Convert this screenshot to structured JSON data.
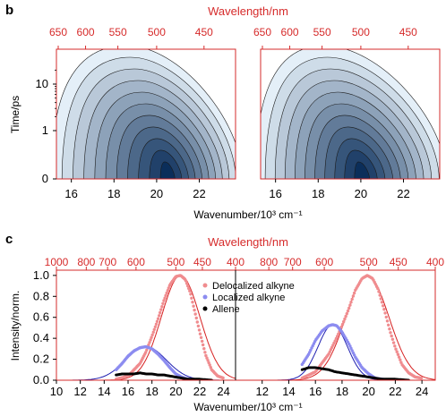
{
  "figure": {
    "panel_b_label": "b",
    "panel_c_label": "c"
  },
  "colors": {
    "top_axis": "#d62b2b",
    "contour_dark": "#0b2e5a",
    "contour_light": "#e4eff8",
    "delocalized": "#e8323a",
    "localized": "#3b3bd8",
    "allene": "#000000",
    "fit_line_deloc": "#d62020",
    "fit_line_loc": "#1f1fb0"
  },
  "chart_data": [
    {
      "type": "heatmap",
      "panel": "b-left",
      "xlabel": "Wavenumber/10³ cm⁻¹",
      "ylabel": "Time/ps",
      "top_axis_label": "Wavelength/nm",
      "x_ticks": [
        "16",
        "18",
        "20",
        "22"
      ],
      "x_tick_values": [
        16,
        18,
        20,
        22
      ],
      "top_ticks": [
        "650",
        "600",
        "550",
        "500",
        "450"
      ],
      "top_tick_values": [
        650,
        600,
        550,
        500,
        450
      ],
      "y_ticks": [
        "0",
        "1",
        "10"
      ],
      "xlim": [
        15.3,
        23.7
      ],
      "y_scale": "linear below 1 ps, log above",
      "peak": {
        "x": 20.5,
        "y": 0.2
      },
      "contour_levels": 11
    },
    {
      "type": "heatmap",
      "panel": "b-right",
      "xlabel": "Wavenumber/10³ cm⁻¹",
      "ylabel": "Time/ps",
      "top_axis_label": "Wavelength/nm",
      "x_ticks": [
        "16",
        "18",
        "20",
        "22"
      ],
      "x_tick_values": [
        16,
        18,
        20,
        22
      ],
      "top_ticks": [
        "650",
        "600",
        "550",
        "500",
        "450"
      ],
      "top_tick_values": [
        650,
        600,
        550,
        500,
        450
      ],
      "xlim": [
        15.3,
        23.7
      ],
      "peak": {
        "x": 20.0,
        "y": 0.2
      },
      "contour_levels": 11
    },
    {
      "type": "line",
      "panel": "c-left",
      "xlabel": "Wavenumber/10³ cm⁻¹",
      "ylabel": "Intensity/norm.",
      "top_axis_label": "Wavelength/nm",
      "xlim": [
        10,
        25
      ],
      "ylim": [
        0,
        1.05
      ],
      "x_ticks": [
        "10",
        "12",
        "14",
        "16",
        "18",
        "20",
        "22",
        "24"
      ],
      "x_tick_values": [
        10,
        12,
        14,
        16,
        18,
        20,
        22,
        24
      ],
      "y_ticks": [
        "0.0",
        "0.2",
        "0.4",
        "0.6",
        "0.8",
        "1.0"
      ],
      "y_tick_values": [
        0,
        0.2,
        0.4,
        0.6,
        0.8,
        1.0
      ],
      "top_ticks": [
        "1000",
        "800",
        "700",
        "600",
        "500",
        "450",
        "400"
      ],
      "top_tick_values": [
        1000,
        800,
        700,
        600,
        500,
        450,
        400
      ],
      "legend": [
        "Delocalized alkyne",
        "Localized alkyne",
        "Allene"
      ],
      "legend_position": "top-right",
      "series": [
        {
          "name": "Delocalized alkyne",
          "x": [
            15.0,
            16.0,
            17.0,
            17.5,
            18.0,
            18.5,
            19.0,
            19.5,
            20.0,
            20.4,
            20.8,
            21.2,
            21.6,
            22.0,
            22.5,
            23.0,
            23.5,
            24.0
          ],
          "values": [
            0.01,
            0.04,
            0.16,
            0.27,
            0.42,
            0.58,
            0.76,
            0.91,
            0.99,
            1.0,
            0.96,
            0.84,
            0.65,
            0.46,
            0.24,
            0.1,
            0.04,
            0.02
          ]
        },
        {
          "name": "Localized alkyne",
          "x": [
            15.0,
            15.5,
            16.0,
            16.5,
            17.0,
            17.5,
            18.0,
            18.5,
            19.0,
            19.5,
            20.0,
            20.5,
            21.0,
            21.5,
            22.0
          ],
          "values": [
            0.1,
            0.16,
            0.23,
            0.28,
            0.31,
            0.32,
            0.3,
            0.25,
            0.19,
            0.12,
            0.06,
            0.03,
            0.01,
            0.005,
            0.0
          ]
        },
        {
          "name": "Allene",
          "x": [
            15.0,
            15.5,
            16.0,
            16.5,
            17.0,
            17.5,
            18.0,
            18.5,
            19.0,
            19.5,
            20.0,
            20.5,
            21.0,
            22.0,
            23.0
          ],
          "values": [
            0.05,
            0.06,
            0.06,
            0.06,
            0.07,
            0.06,
            0.06,
            0.05,
            0.05,
            0.04,
            0.03,
            0.02,
            0.01,
            0.01,
            0.0
          ]
        }
      ]
    },
    {
      "type": "line",
      "panel": "c-right",
      "xlabel": "Wavenumber/10³ cm⁻¹",
      "top_axis_label": "Wavelength/nm",
      "xlim": [
        10,
        25
      ],
      "ylim": [
        0,
        1.05
      ],
      "x_ticks": [
        "12",
        "14",
        "16",
        "18",
        "20",
        "22",
        "24"
      ],
      "x_tick_values": [
        12,
        14,
        16,
        18,
        20,
        22,
        24
      ],
      "top_ticks": [
        "800",
        "700",
        "600",
        "500",
        "450",
        "400"
      ],
      "top_tick_values": [
        800,
        700,
        600,
        500,
        450,
        400
      ],
      "series": [
        {
          "name": "Delocalized alkyne",
          "x": [
            15.0,
            16.0,
            17.0,
            17.5,
            18.0,
            18.5,
            19.0,
            19.5,
            19.9,
            20.3,
            20.7,
            21.2,
            21.6,
            22.0,
            22.5,
            23.0,
            23.5,
            24.0
          ],
          "values": [
            0.02,
            0.08,
            0.25,
            0.38,
            0.52,
            0.68,
            0.86,
            0.97,
            1.0,
            0.97,
            0.87,
            0.66,
            0.47,
            0.31,
            0.15,
            0.07,
            0.03,
            0.02
          ]
        },
        {
          "name": "Localized alkyne",
          "x": [
            15.0,
            15.5,
            16.0,
            16.5,
            17.0,
            17.3,
            17.6,
            18.0,
            18.5,
            19.0,
            19.5,
            20.0,
            20.5,
            21.0,
            21.5
          ],
          "values": [
            0.15,
            0.25,
            0.38,
            0.47,
            0.52,
            0.53,
            0.52,
            0.46,
            0.35,
            0.22,
            0.12,
            0.06,
            0.02,
            0.01,
            0.0
          ]
        },
        {
          "name": "Allene",
          "x": [
            15.0,
            15.5,
            16.0,
            16.5,
            17.0,
            17.5,
            18.0,
            18.5,
            19.0,
            19.5,
            20.0,
            20.5,
            21.0,
            22.0,
            23.0
          ],
          "values": [
            0.1,
            0.12,
            0.12,
            0.11,
            0.1,
            0.08,
            0.07,
            0.06,
            0.05,
            0.04,
            0.03,
            0.02,
            0.01,
            0.01,
            0.0
          ]
        }
      ]
    }
  ]
}
